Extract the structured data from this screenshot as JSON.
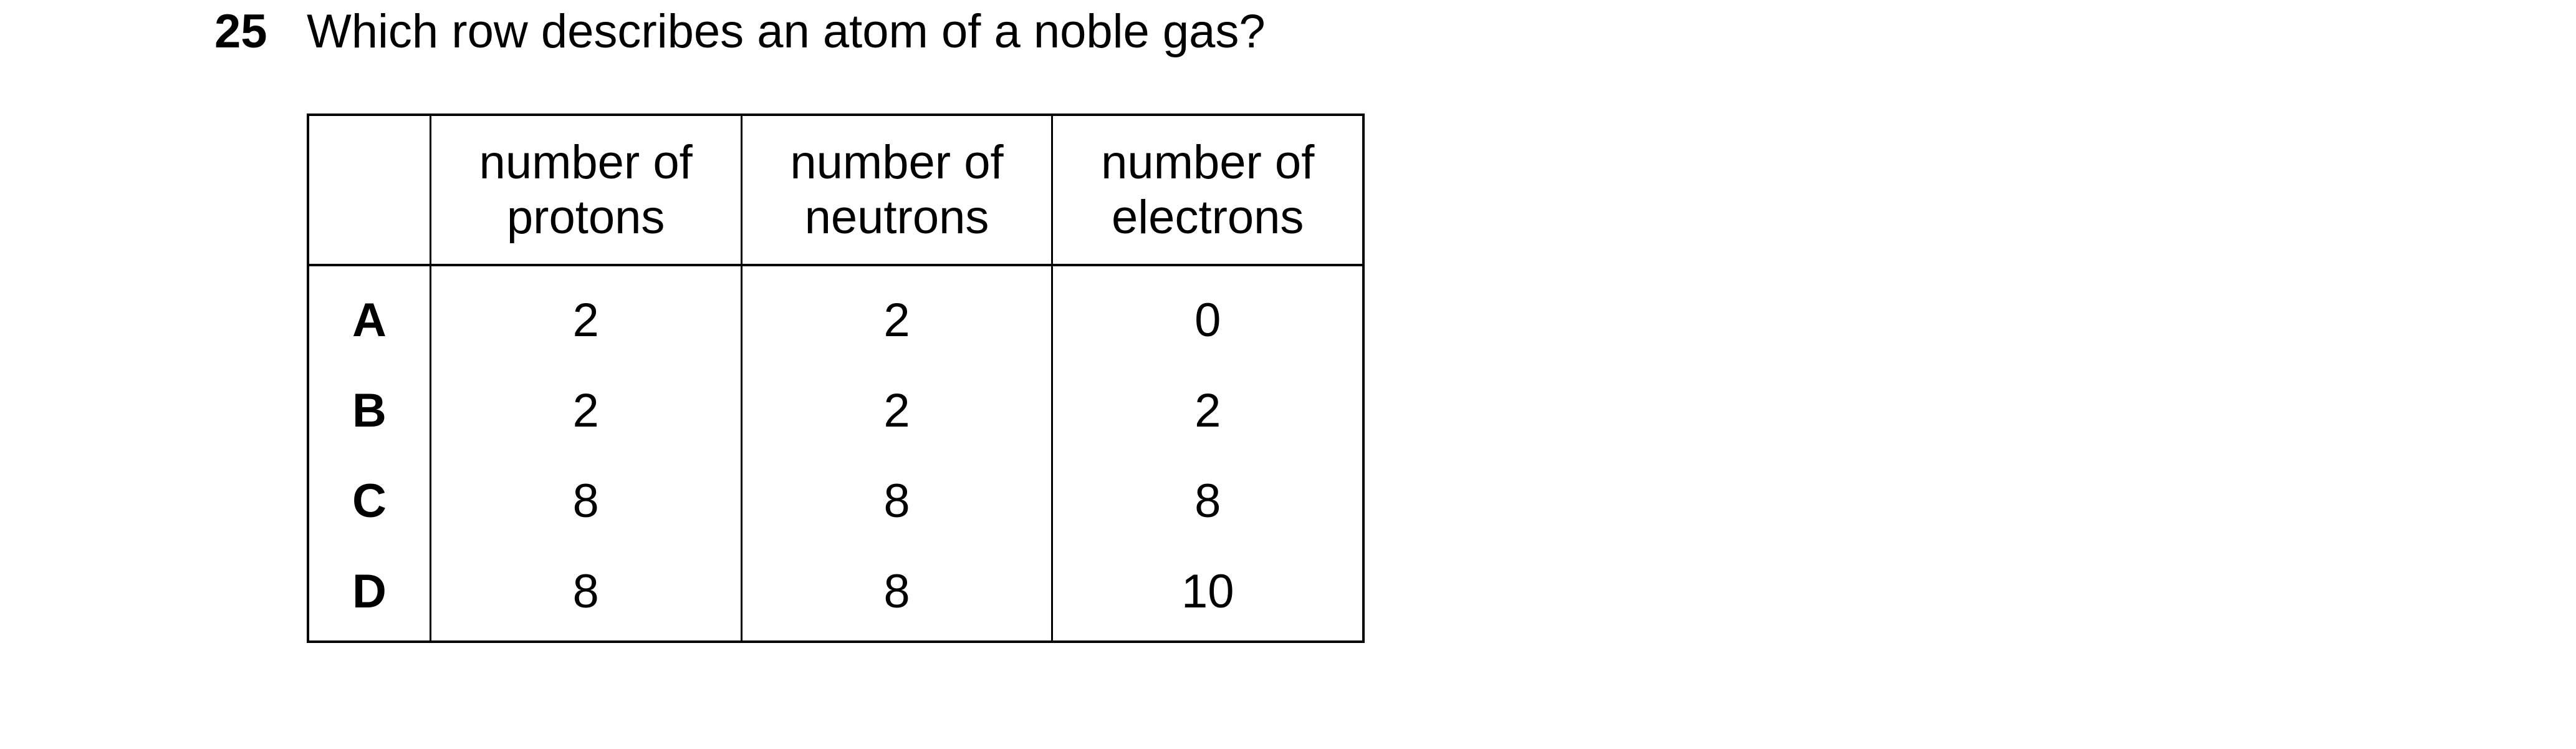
{
  "question": {
    "number": "25",
    "text": "Which row describes an atom of a noble gas?"
  },
  "table": {
    "headers": [
      {
        "line1": "number of",
        "line2": "protons"
      },
      {
        "line1": "number of",
        "line2": "neutrons"
      },
      {
        "line1": "number of",
        "line2": "electrons"
      }
    ],
    "rows": [
      {
        "letter": "A",
        "protons": "2",
        "neutrons": "2",
        "electrons": "0"
      },
      {
        "letter": "B",
        "protons": "2",
        "neutrons": "2",
        "electrons": "2"
      },
      {
        "letter": "C",
        "protons": "8",
        "neutrons": "8",
        "electrons": "8"
      },
      {
        "letter": "D",
        "protons": "8",
        "neutrons": "8",
        "electrons": "10"
      }
    ]
  }
}
